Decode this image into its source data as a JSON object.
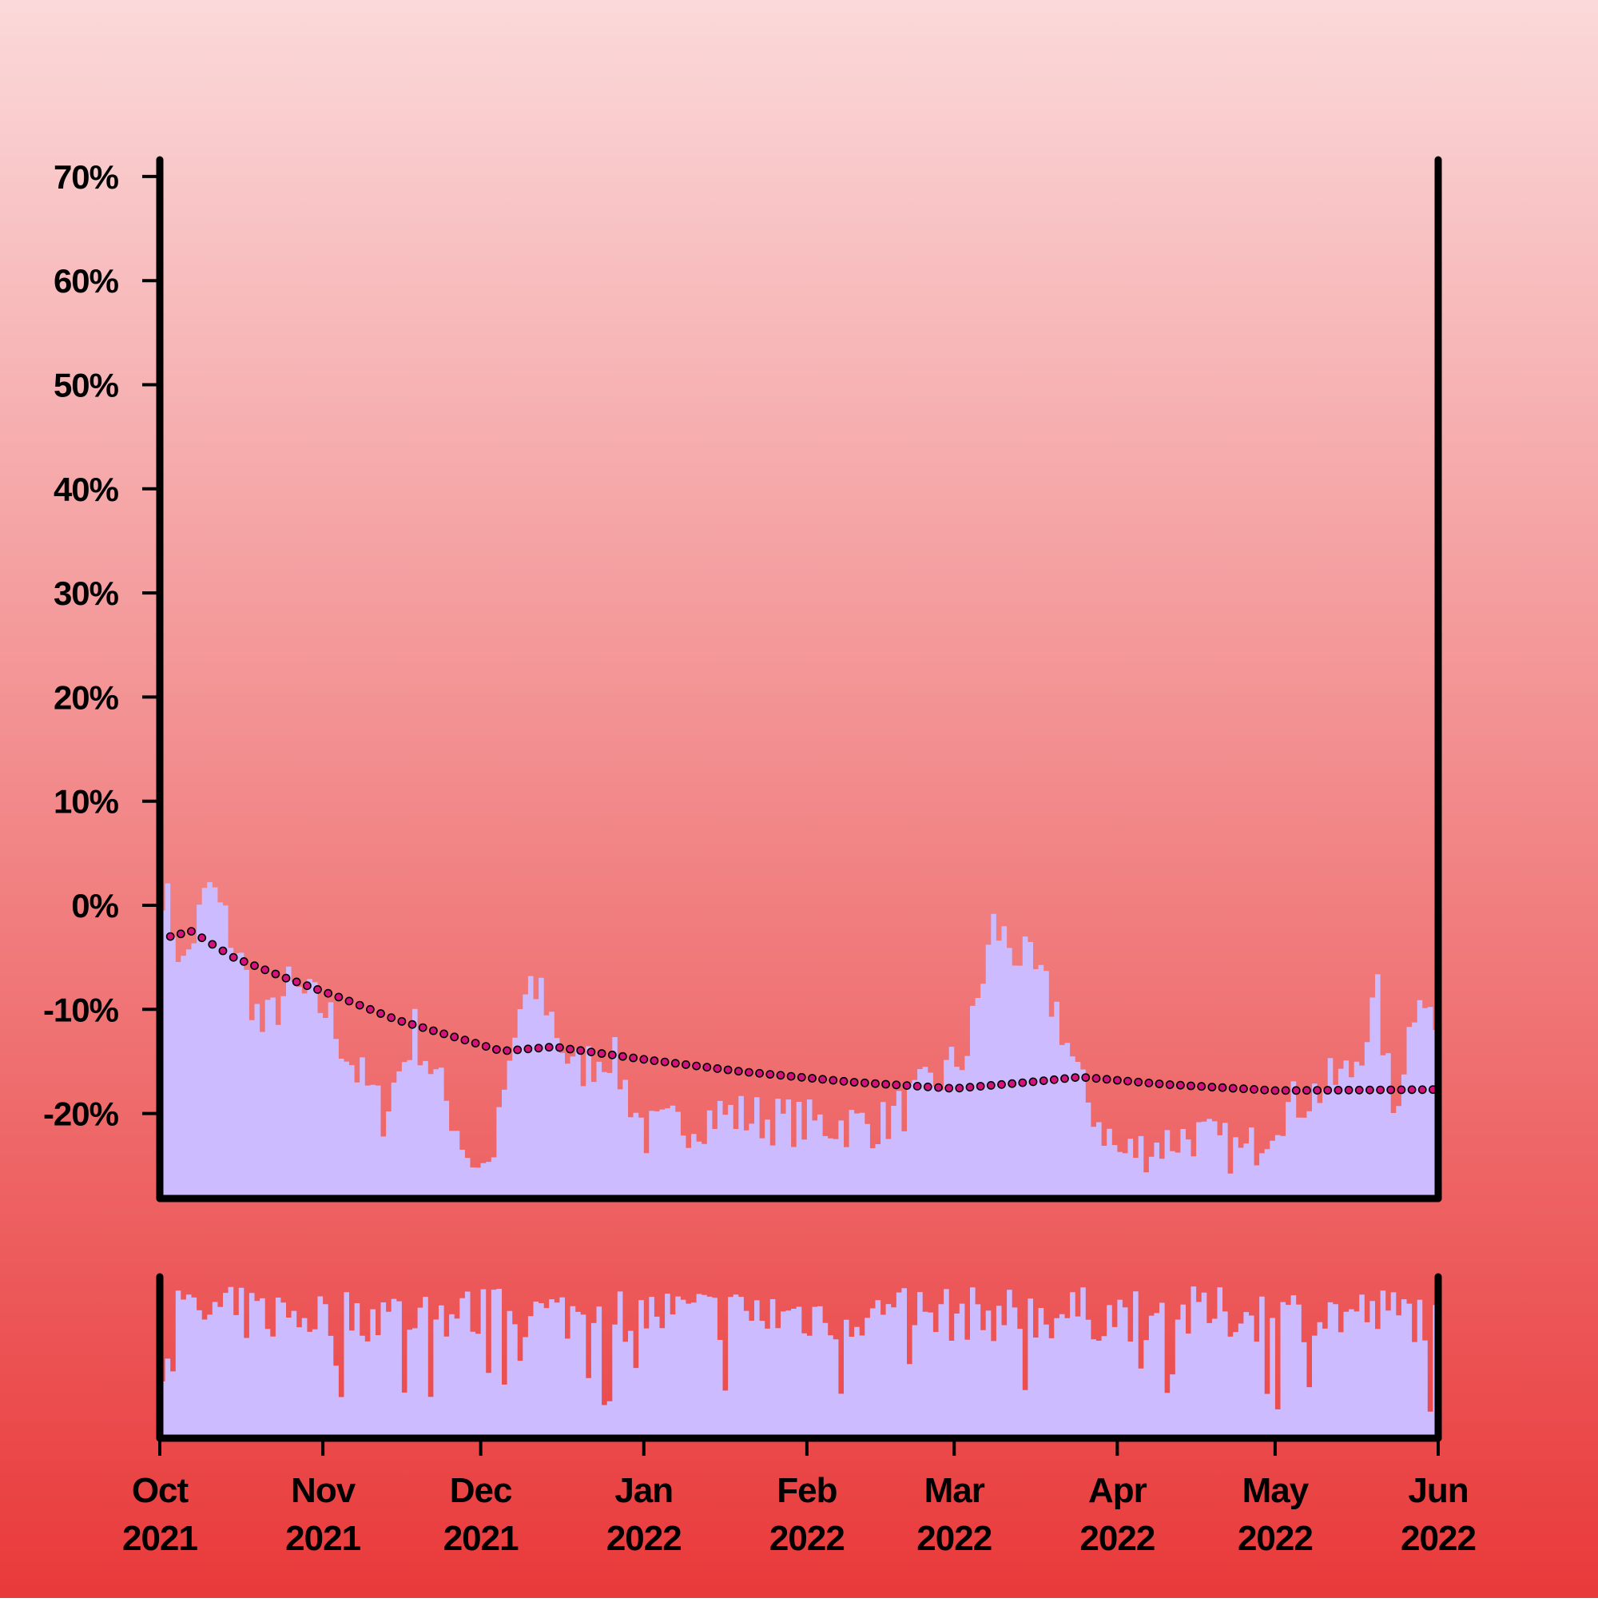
{
  "chart_data": {
    "type": "area",
    "x_start": "2021-10-01",
    "x_end": "2022-06-01",
    "xaxis": {
      "ticks": [
        {
          "date": "2021-10-01",
          "month": "Oct",
          "year": "2021"
        },
        {
          "date": "2021-11-01",
          "month": "Nov",
          "year": "2021"
        },
        {
          "date": "2021-12-01",
          "month": "Dec",
          "year": "2021"
        },
        {
          "date": "2022-01-01",
          "month": "Jan",
          "year": "2022"
        },
        {
          "date": "2022-02-01",
          "month": "Feb",
          "year": "2022"
        },
        {
          "date": "2022-03-01",
          "month": "Mar",
          "year": "2022"
        },
        {
          "date": "2022-04-01",
          "month": "Apr",
          "year": "2022"
        },
        {
          "date": "2022-05-01",
          "month": "May",
          "year": "2022"
        },
        {
          "date": "2022-06-01",
          "month": "Jun",
          "year": "2022"
        }
      ]
    },
    "yaxis": {
      "ylim": [
        -28,
        72
      ],
      "tick_values": [
        -20,
        -10,
        0,
        10,
        20,
        30,
        40,
        50,
        60,
        70
      ],
      "tick_labels": [
        "-20%",
        "-10%",
        "0%",
        "10%",
        "20%",
        "30%",
        "40%",
        "50%",
        "60%",
        "70%"
      ]
    },
    "main_series_anchors": [
      {
        "x": "2021-10-01",
        "y": 2
      },
      {
        "x": "2021-10-05",
        "y": -6
      },
      {
        "x": "2021-10-10",
        "y": 2
      },
      {
        "x": "2021-10-15",
        "y": -4
      },
      {
        "x": "2021-10-20",
        "y": -12
      },
      {
        "x": "2021-10-25",
        "y": -8
      },
      {
        "x": "2021-11-01",
        "y": -10
      },
      {
        "x": "2021-11-07",
        "y": -16
      },
      {
        "x": "2021-11-12",
        "y": -20
      },
      {
        "x": "2021-11-18",
        "y": -12
      },
      {
        "x": "2021-11-25",
        "y": -20
      },
      {
        "x": "2021-11-30",
        "y": -26
      },
      {
        "x": "2021-12-03",
        "y": -24
      },
      {
        "x": "2021-12-08",
        "y": -10
      },
      {
        "x": "2021-12-12",
        "y": -8
      },
      {
        "x": "2021-12-18",
        "y": -16
      },
      {
        "x": "2021-12-25",
        "y": -14
      },
      {
        "x": "2022-01-01",
        "y": -22
      },
      {
        "x": "2022-01-15",
        "y": -20
      },
      {
        "x": "2022-02-01",
        "y": -21
      },
      {
        "x": "2022-02-15",
        "y": -21
      },
      {
        "x": "2022-02-25",
        "y": -17
      },
      {
        "x": "2022-03-03",
        "y": -14
      },
      {
        "x": "2022-03-08",
        "y": -2
      },
      {
        "x": "2022-03-15",
        "y": -6
      },
      {
        "x": "2022-03-20",
        "y": -10
      },
      {
        "x": "2022-03-25",
        "y": -18
      },
      {
        "x": "2022-04-01",
        "y": -24
      },
      {
        "x": "2022-04-15",
        "y": -22
      },
      {
        "x": "2022-04-25",
        "y": -24
      },
      {
        "x": "2022-05-01",
        "y": -20
      },
      {
        "x": "2022-05-15",
        "y": -16
      },
      {
        "x": "2022-05-20",
        "y": -9
      },
      {
        "x": "2022-05-23",
        "y": -20
      },
      {
        "x": "2022-05-28",
        "y": -7
      },
      {
        "x": "2022-06-01",
        "y": -14
      }
    ],
    "trend_anchors": [
      {
        "x": "2021-10-01",
        "y": -1.5
      },
      {
        "x": "2021-10-03",
        "y": -3
      },
      {
        "x": "2021-10-07",
        "y": -2.5
      },
      {
        "x": "2021-10-15",
        "y": -5
      },
      {
        "x": "2021-10-25",
        "y": -7
      },
      {
        "x": "2021-11-05",
        "y": -9
      },
      {
        "x": "2021-11-15",
        "y": -11
      },
      {
        "x": "2021-11-25",
        "y": -12.5
      },
      {
        "x": "2021-12-05",
        "y": -14
      },
      {
        "x": "2021-12-15",
        "y": -13.6
      },
      {
        "x": "2022-01-01",
        "y": -14.8
      },
      {
        "x": "2022-01-20",
        "y": -16
      },
      {
        "x": "2022-02-10",
        "y": -17
      },
      {
        "x": "2022-03-01",
        "y": -17.6
      },
      {
        "x": "2022-03-15",
        "y": -17
      },
      {
        "x": "2022-03-25",
        "y": -16.5
      },
      {
        "x": "2022-04-10",
        "y": -17.2
      },
      {
        "x": "2022-05-01",
        "y": -17.8
      },
      {
        "x": "2022-06-01",
        "y": -17.7
      }
    ],
    "colors": {
      "background_top": "#fbd9da",
      "background_bottom": "#e9393a",
      "area_fill": "#ccbbff",
      "trend_marker": "#d6127f",
      "axis": "#000000"
    }
  }
}
